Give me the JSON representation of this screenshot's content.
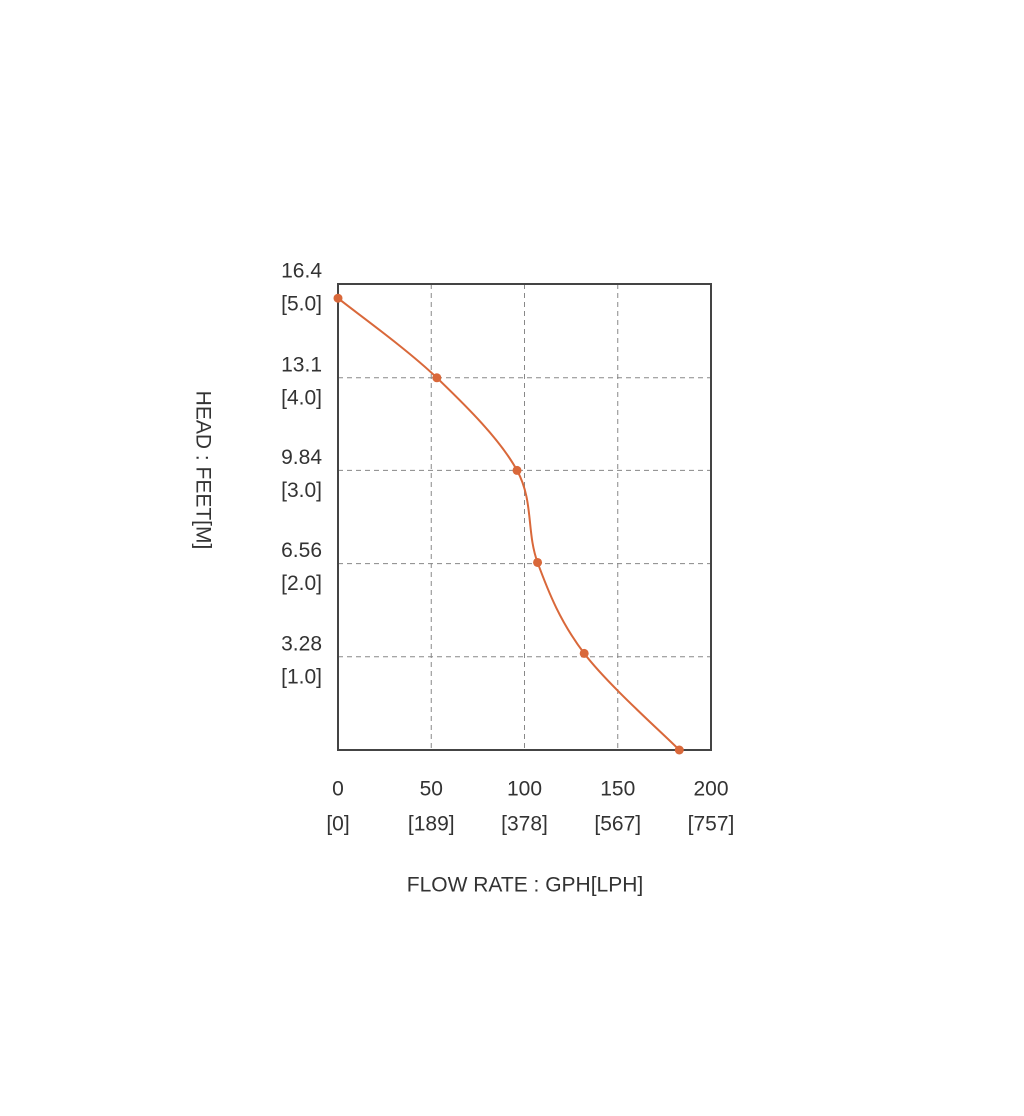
{
  "chart_data": {
    "type": "line",
    "x_label": "FLOW RATE : GPH[LPH]",
    "y_label": "HEAD : FEET[M]",
    "xlim": [
      0,
      200
    ],
    "ylim": [
      0,
      16.4
    ],
    "xticks": [
      0,
      50,
      100,
      150,
      200
    ],
    "xtick_metric_labels": [
      "[0]",
      "[189]",
      "[378]",
      "[567]",
      "[757]"
    ],
    "yticks": [
      3.28,
      6.56,
      9.84,
      13.1,
      16.4
    ],
    "ytick_metric_labels": [
      "[1.0]",
      "[2.0]",
      "[3.0]",
      "[4.0]",
      "[5.0]"
    ],
    "grid": true,
    "series": [
      {
        "color": "#d9683a",
        "x": [
          0,
          53,
          96,
          107,
          132,
          183
        ],
        "values": [
          15.9,
          13.1,
          9.84,
          6.6,
          3.4,
          0
        ]
      }
    ]
  }
}
